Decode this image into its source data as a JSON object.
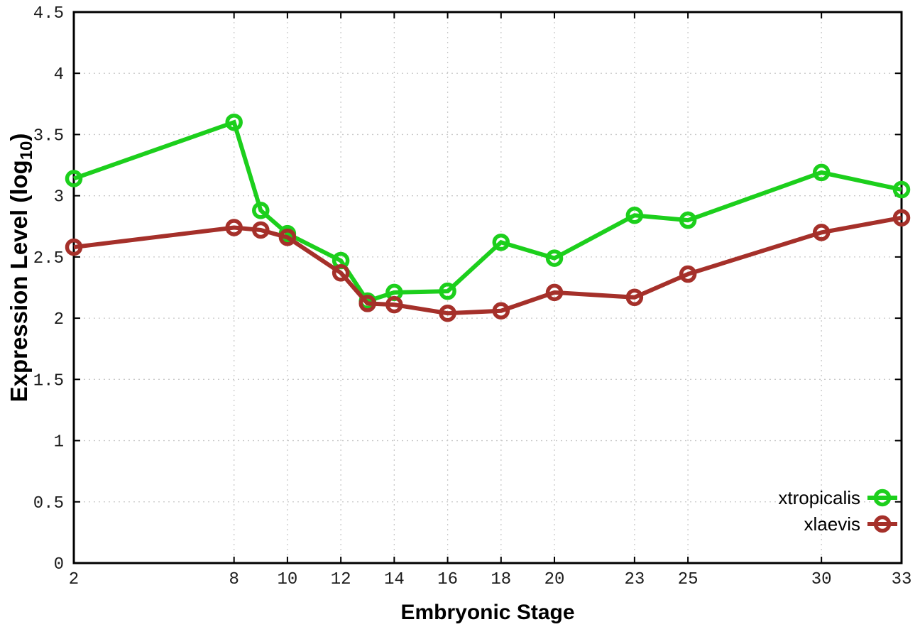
{
  "page": {
    "background_color": "#ffffff"
  },
  "chart_data": {
    "type": "line",
    "title": "",
    "xlabel": "Embryonic Stage",
    "ylabel": {
      "prefix": "Expression Level (log",
      "subscript": "10",
      "suffix": ")"
    },
    "x": [
      2,
      8,
      9,
      10,
      12,
      13,
      14,
      16,
      18,
      20,
      23,
      25,
      30,
      33
    ],
    "xtick_labels": [
      2,
      8,
      10,
      12,
      14,
      16,
      18,
      20,
      23,
      25,
      30,
      33
    ],
    "ytick_labels": [
      0,
      0.5,
      1,
      1.5,
      2,
      2.5,
      3,
      3.5,
      4,
      4.5
    ],
    "xlim": [
      2,
      33
    ],
    "ylim": [
      0,
      4.5
    ],
    "grid": true,
    "legend_position": "bottom-right",
    "series": [
      {
        "name": "xtropicalis",
        "color": "#1ccf1c",
        "values": [
          3.14,
          3.6,
          2.88,
          2.69,
          2.47,
          2.14,
          2.21,
          2.22,
          2.62,
          2.49,
          2.84,
          2.8,
          3.19,
          3.05
        ]
      },
      {
        "name": "xlaevis",
        "color": "#a5302a",
        "values": [
          2.58,
          2.74,
          2.72,
          2.66,
          2.37,
          2.12,
          2.11,
          2.04,
          2.06,
          2.21,
          2.17,
          2.36,
          2.7,
          2.82
        ]
      }
    ],
    "style": {
      "axis_color": "#000000",
      "grid_color": "#c9c9c9",
      "tick_label_color": "#1c1c1c",
      "line_width": 6,
      "marker_radius": 9.5,
      "marker_stroke": 5.5
    }
  }
}
